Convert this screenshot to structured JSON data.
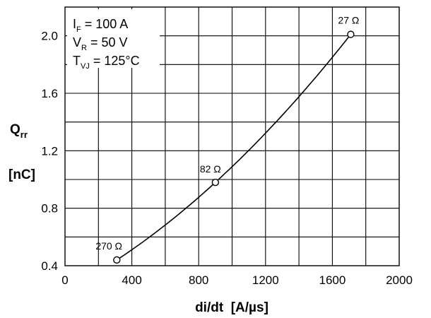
{
  "chart_data": {
    "type": "line",
    "xlabel": "di/dt  [A/µs]",
    "ylabel_main": "Q",
    "ylabel_sub": "rr",
    "ylabel_unit": "[nC]",
    "xlim": [
      0,
      2000
    ],
    "ylim": [
      0.4,
      2.2
    ],
    "grid": true,
    "x_ticks": [
      {
        "value": 0,
        "label": "0"
      },
      {
        "value": 400,
        "label": "400"
      },
      {
        "value": 800,
        "label": "800"
      },
      {
        "value": 1200,
        "label": "1200"
      },
      {
        "value": 1600,
        "label": "1600"
      },
      {
        "value": 2000,
        "label": "2000"
      }
    ],
    "y_ticks": [
      {
        "value": 0.4,
        "label": "0.4"
      },
      {
        "value": 0.8,
        "label": "0.8"
      },
      {
        "value": 1.2,
        "label": "1.2"
      },
      {
        "value": 1.6,
        "label": "1.6"
      },
      {
        "value": 2.0,
        "label": "2.0"
      }
    ],
    "conditions": [
      {
        "sym": "I",
        "sub": "F",
        "eq": "=",
        "val": "100 A"
      },
      {
        "sym": "V",
        "sub": "R",
        "eq": "=",
        "val": "50 V"
      },
      {
        "sym": "T",
        "sub": "VJ",
        "eq": "=",
        "val": "125°C"
      }
    ],
    "series": [
      {
        "x": [
          310,
          900,
          1710
        ],
        "y": [
          0.44,
          0.98,
          2.01
        ],
        "labels": [
          "270 Ω",
          "82 Ω",
          "27 Ω"
        ]
      }
    ]
  }
}
